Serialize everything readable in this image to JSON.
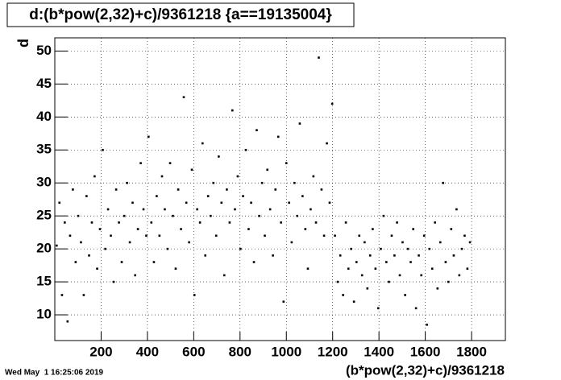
{
  "chart_data": {
    "type": "scatter",
    "title": "d:(b*pow(2,32)+c)/9361218 {a==19135004}",
    "x_label": "(b*pow(2,32)+c)/9361218",
    "y_label": "d",
    "timestamp": "Wed May  1 16:25:06 2019",
    "xlim": [
      0,
      1946
    ],
    "ylim": [
      6.1,
      52
    ],
    "xticks": [
      200,
      400,
      600,
      800,
      1000,
      1200,
      1400,
      1600,
      1800
    ],
    "yticks": [
      10,
      15,
      20,
      25,
      30,
      35,
      40,
      45,
      50
    ],
    "grid": true,
    "series": [
      {
        "color": "#000000",
        "x": [
          8,
          20,
          31,
          43,
          55,
          66,
          78,
          90,
          101,
          113,
          125,
          137,
          148,
          160,
          172,
          183,
          195,
          207,
          218,
          230,
          242,
          254,
          265,
          277,
          289,
          300,
          312,
          324,
          336,
          347,
          359,
          371,
          383,
          395,
          405,
          417,
          428,
          440,
          452,
          463,
          475,
          487,
          498,
          510,
          522,
          533,
          545,
          557,
          568,
          580,
          592,
          603,
          615,
          627,
          638,
          650,
          662,
          673,
          685,
          697,
          708,
          720,
          732,
          743,
          755,
          767,
          778,
          790,
          802,
          813,
          825,
          837,
          848,
          860,
          872,
          883,
          895,
          907,
          918,
          930,
          942,
          953,
          965,
          977,
          988,
          1000,
          1012,
          1023,
          1035,
          1047,
          1058,
          1070,
          1082,
          1093,
          1105,
          1117,
          1128,
          1140,
          1152,
          1163,
          1175,
          1187,
          1198,
          1210,
          1222,
          1233,
          1245,
          1257,
          1268,
          1280,
          1292,
          1303,
          1315,
          1327,
          1338,
          1350,
          1362,
          1373,
          1385,
          1397,
          1408,
          1420,
          1432,
          1443,
          1455,
          1467,
          1478,
          1490,
          1502,
          1513,
          1525,
          1537,
          1548,
          1560,
          1572,
          1583,
          1595,
          1607,
          1618,
          1630,
          1642,
          1653,
          1665,
          1677,
          1688,
          1700,
          1712,
          1723,
          1735,
          1747,
          1758,
          1770,
          1782,
          1793
        ],
        "values": [
          20.5,
          27,
          13,
          24,
          9,
          22,
          29,
          18,
          25,
          21,
          13,
          28,
          19,
          24,
          31,
          17,
          23,
          35,
          20,
          26,
          22,
          15,
          29,
          24,
          18,
          25,
          30,
          21,
          27,
          16,
          23,
          33,
          26,
          22,
          37,
          24,
          18,
          28,
          22,
          31,
          26,
          20,
          33,
          25,
          17,
          29,
          23,
          43,
          27,
          21,
          32,
          13,
          26,
          24,
          36,
          19,
          28,
          25,
          30,
          22,
          34,
          27,
          16,
          29,
          24,
          41,
          26,
          31,
          20,
          28,
          35,
          23,
          27,
          18,
          38,
          25,
          30,
          22,
          32,
          26,
          19,
          29,
          37,
          24,
          12,
          33,
          27,
          21,
          30,
          25,
          39,
          28,
          23,
          17,
          26,
          31,
          24,
          49,
          29,
          22,
          36,
          27,
          42,
          22,
          15,
          19,
          13,
          24,
          17,
          20,
          12,
          18,
          22,
          16,
          21,
          14,
          19,
          23,
          17,
          11,
          20,
          25,
          18,
          15,
          22,
          19,
          24,
          16,
          21,
          13,
          20,
          18,
          23,
          11,
          19,
          16,
          22,
          8.5,
          20,
          17,
          24,
          14,
          21,
          30,
          18,
          15,
          23,
          19,
          26,
          16,
          20,
          22,
          17,
          21
        ]
      }
    ]
  }
}
